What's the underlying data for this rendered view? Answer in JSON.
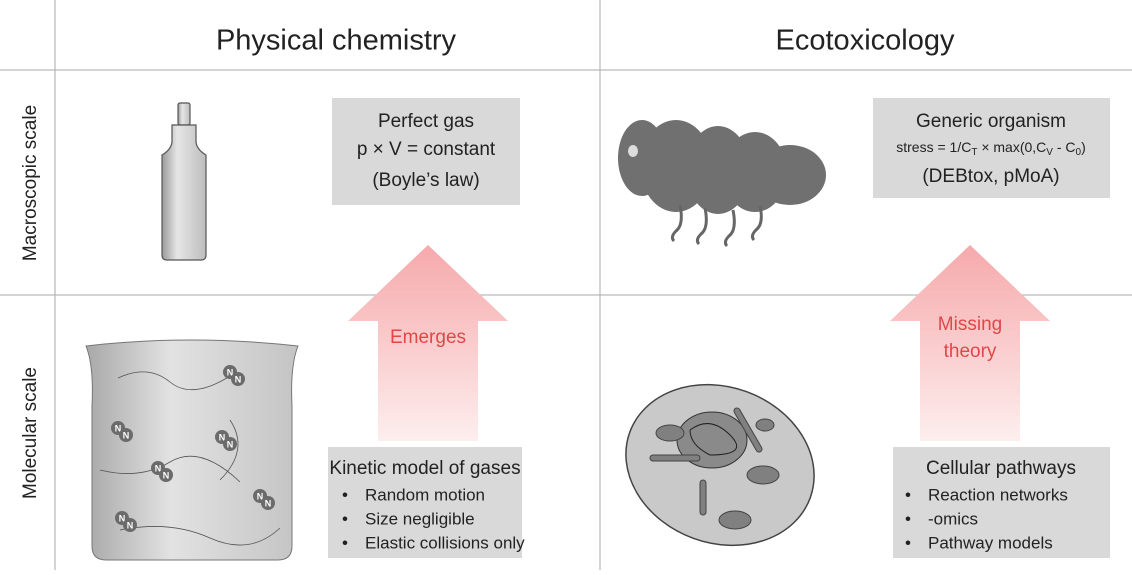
{
  "columns": [
    "Physical chemistry",
    "Ecotoxicology"
  ],
  "rows": [
    "Macroscopic scale",
    "Molecular scale"
  ],
  "physical": {
    "macro": {
      "title": "Perfect gas",
      "lines": [
        "p × V = constant",
        "(Boyle’s law)"
      ]
    },
    "arrow": [
      "Emerges"
    ],
    "micro": {
      "title": "Kinetic model of gases",
      "bullets": [
        "Random motion",
        "Size negligible",
        "Elastic collisions only"
      ]
    },
    "molecule_label": "N"
  },
  "ecotox": {
    "macro": {
      "title": "Generic organism",
      "formula": [
        "stress = 1/C",
        "T",
        " × max(0,C",
        "V",
        " - C",
        "0",
        ")"
      ],
      "note": "(DEBtox, pMoA)"
    },
    "arrow": [
      "Missing",
      "theory"
    ],
    "micro": {
      "title": "Cellular pathways",
      "bullets": [
        "Reaction networks",
        "-omics",
        "Pathway models"
      ]
    }
  },
  "bullet": "•"
}
